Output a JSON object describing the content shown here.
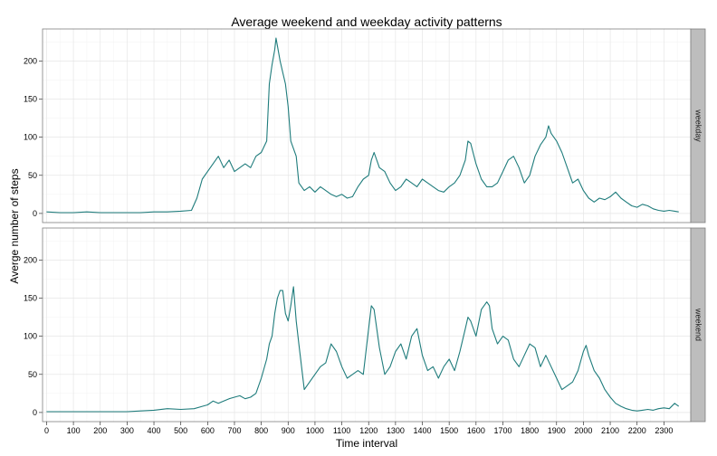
{
  "chart_data": {
    "type": "line",
    "title": "Average weekend and weekday activity patterns",
    "xlabel": "Time interval",
    "ylabel": "Averge number of steps",
    "xlim": [
      -15,
      2400
    ],
    "ylim": [
      -12,
      242
    ],
    "x_ticks": [
      "0",
      "100",
      "200",
      "300",
      "400",
      "500",
      "600",
      "700",
      "800",
      "900",
      "1000",
      "1100",
      "1200",
      "1300",
      "1400",
      "1500",
      "1600",
      "1700",
      "1800",
      "1900",
      "2000",
      "2100",
      "2200",
      "2300"
    ],
    "y_ticks": [
      "0",
      "50",
      "100",
      "150",
      "200"
    ],
    "grid": true,
    "line_color": "#1f7c7c",
    "panel_border_color": "#7f7f7f",
    "strip_fill": "#bdbdbd",
    "panels": [
      {
        "name": "weekday",
        "points": [
          [
            0,
            2
          ],
          [
            50,
            1
          ],
          [
            100,
            1
          ],
          [
            150,
            2
          ],
          [
            200,
            1
          ],
          [
            250,
            1
          ],
          [
            300,
            1
          ],
          [
            350,
            1
          ],
          [
            400,
            2
          ],
          [
            450,
            2
          ],
          [
            500,
            3
          ],
          [
            540,
            4
          ],
          [
            560,
            20
          ],
          [
            580,
            45
          ],
          [
            600,
            55
          ],
          [
            620,
            65
          ],
          [
            640,
            75
          ],
          [
            660,
            60
          ],
          [
            680,
            70
          ],
          [
            700,
            55
          ],
          [
            720,
            60
          ],
          [
            740,
            65
          ],
          [
            760,
            60
          ],
          [
            780,
            75
          ],
          [
            800,
            80
          ],
          [
            820,
            95
          ],
          [
            830,
            170
          ],
          [
            840,
            195
          ],
          [
            850,
            215
          ],
          [
            855,
            230
          ],
          [
            860,
            220
          ],
          [
            870,
            200
          ],
          [
            880,
            185
          ],
          [
            890,
            170
          ],
          [
            900,
            140
          ],
          [
            910,
            95
          ],
          [
            920,
            85
          ],
          [
            930,
            75
          ],
          [
            940,
            40
          ],
          [
            960,
            30
          ],
          [
            980,
            35
          ],
          [
            1000,
            28
          ],
          [
            1020,
            35
          ],
          [
            1040,
            30
          ],
          [
            1060,
            25
          ],
          [
            1080,
            22
          ],
          [
            1100,
            25
          ],
          [
            1120,
            20
          ],
          [
            1140,
            22
          ],
          [
            1160,
            35
          ],
          [
            1180,
            45
          ],
          [
            1200,
            50
          ],
          [
            1210,
            70
          ],
          [
            1220,
            80
          ],
          [
            1240,
            60
          ],
          [
            1260,
            55
          ],
          [
            1280,
            40
          ],
          [
            1300,
            30
          ],
          [
            1320,
            35
          ],
          [
            1340,
            45
          ],
          [
            1360,
            40
          ],
          [
            1380,
            35
          ],
          [
            1400,
            45
          ],
          [
            1420,
            40
          ],
          [
            1440,
            35
          ],
          [
            1460,
            30
          ],
          [
            1480,
            28
          ],
          [
            1500,
            35
          ],
          [
            1520,
            40
          ],
          [
            1540,
            50
          ],
          [
            1560,
            70
          ],
          [
            1570,
            95
          ],
          [
            1580,
            92
          ],
          [
            1600,
            65
          ],
          [
            1620,
            45
          ],
          [
            1640,
            35
          ],
          [
            1660,
            35
          ],
          [
            1680,
            40
          ],
          [
            1700,
            55
          ],
          [
            1720,
            70
          ],
          [
            1740,
            75
          ],
          [
            1760,
            60
          ],
          [
            1780,
            40
          ],
          [
            1800,
            50
          ],
          [
            1820,
            75
          ],
          [
            1840,
            90
          ],
          [
            1860,
            100
          ],
          [
            1870,
            115
          ],
          [
            1880,
            105
          ],
          [
            1900,
            95
          ],
          [
            1920,
            80
          ],
          [
            1940,
            60
          ],
          [
            1960,
            40
          ],
          [
            1980,
            45
          ],
          [
            2000,
            30
          ],
          [
            2020,
            20
          ],
          [
            2040,
            15
          ],
          [
            2060,
            20
          ],
          [
            2080,
            18
          ],
          [
            2100,
            22
          ],
          [
            2120,
            28
          ],
          [
            2140,
            20
          ],
          [
            2160,
            15
          ],
          [
            2180,
            10
          ],
          [
            2200,
            8
          ],
          [
            2220,
            12
          ],
          [
            2240,
            10
          ],
          [
            2260,
            6
          ],
          [
            2280,
            4
          ],
          [
            2300,
            3
          ],
          [
            2320,
            4
          ],
          [
            2340,
            3
          ],
          [
            2355,
            2
          ]
        ]
      },
      {
        "name": "weekend",
        "points": [
          [
            0,
            1
          ],
          [
            50,
            1
          ],
          [
            100,
            1
          ],
          [
            150,
            1
          ],
          [
            200,
            1
          ],
          [
            250,
            1
          ],
          [
            300,
            1
          ],
          [
            350,
            2
          ],
          [
            400,
            3
          ],
          [
            450,
            5
          ],
          [
            500,
            4
          ],
          [
            550,
            5
          ],
          [
            580,
            8
          ],
          [
            600,
            10
          ],
          [
            620,
            15
          ],
          [
            640,
            12
          ],
          [
            660,
            15
          ],
          [
            680,
            18
          ],
          [
            700,
            20
          ],
          [
            720,
            22
          ],
          [
            740,
            18
          ],
          [
            760,
            20
          ],
          [
            780,
            25
          ],
          [
            800,
            45
          ],
          [
            820,
            70
          ],
          [
            830,
            90
          ],
          [
            840,
            100
          ],
          [
            850,
            130
          ],
          [
            860,
            150
          ],
          [
            870,
            160
          ],
          [
            880,
            160
          ],
          [
            890,
            130
          ],
          [
            900,
            120
          ],
          [
            910,
            140
          ],
          [
            920,
            165
          ],
          [
            930,
            120
          ],
          [
            940,
            90
          ],
          [
            950,
            60
          ],
          [
            960,
            30
          ],
          [
            980,
            40
          ],
          [
            1000,
            50
          ],
          [
            1020,
            60
          ],
          [
            1040,
            65
          ],
          [
            1060,
            90
          ],
          [
            1080,
            80
          ],
          [
            1100,
            60
          ],
          [
            1120,
            45
          ],
          [
            1140,
            50
          ],
          [
            1160,
            55
          ],
          [
            1180,
            50
          ],
          [
            1200,
            110
          ],
          [
            1210,
            140
          ],
          [
            1220,
            135
          ],
          [
            1240,
            85
          ],
          [
            1260,
            50
          ],
          [
            1280,
            60
          ],
          [
            1300,
            80
          ],
          [
            1320,
            90
          ],
          [
            1340,
            70
          ],
          [
            1360,
            100
          ],
          [
            1380,
            110
          ],
          [
            1400,
            75
          ],
          [
            1420,
            55
          ],
          [
            1440,
            60
          ],
          [
            1460,
            45
          ],
          [
            1480,
            60
          ],
          [
            1500,
            70
          ],
          [
            1520,
            55
          ],
          [
            1540,
            80
          ],
          [
            1560,
            110
          ],
          [
            1570,
            125
          ],
          [
            1580,
            120
          ],
          [
            1600,
            100
          ],
          [
            1620,
            135
          ],
          [
            1640,
            145
          ],
          [
            1650,
            140
          ],
          [
            1660,
            110
          ],
          [
            1680,
            90
          ],
          [
            1700,
            100
          ],
          [
            1720,
            95
          ],
          [
            1740,
            70
          ],
          [
            1760,
            60
          ],
          [
            1780,
            75
          ],
          [
            1800,
            90
          ],
          [
            1820,
            85
          ],
          [
            1840,
            60
          ],
          [
            1860,
            75
          ],
          [
            1880,
            60
          ],
          [
            1900,
            45
          ],
          [
            1920,
            30
          ],
          [
            1940,
            35
          ],
          [
            1960,
            40
          ],
          [
            1980,
            55
          ],
          [
            2000,
            80
          ],
          [
            2010,
            88
          ],
          [
            2020,
            75
          ],
          [
            2040,
            55
          ],
          [
            2060,
            45
          ],
          [
            2080,
            30
          ],
          [
            2100,
            20
          ],
          [
            2120,
            12
          ],
          [
            2140,
            8
          ],
          [
            2160,
            5
          ],
          [
            2180,
            3
          ],
          [
            2200,
            2
          ],
          [
            2220,
            3
          ],
          [
            2240,
            4
          ],
          [
            2260,
            3
          ],
          [
            2280,
            5
          ],
          [
            2300,
            6
          ],
          [
            2320,
            5
          ],
          [
            2340,
            12
          ],
          [
            2355,
            8
          ]
        ]
      }
    ]
  }
}
